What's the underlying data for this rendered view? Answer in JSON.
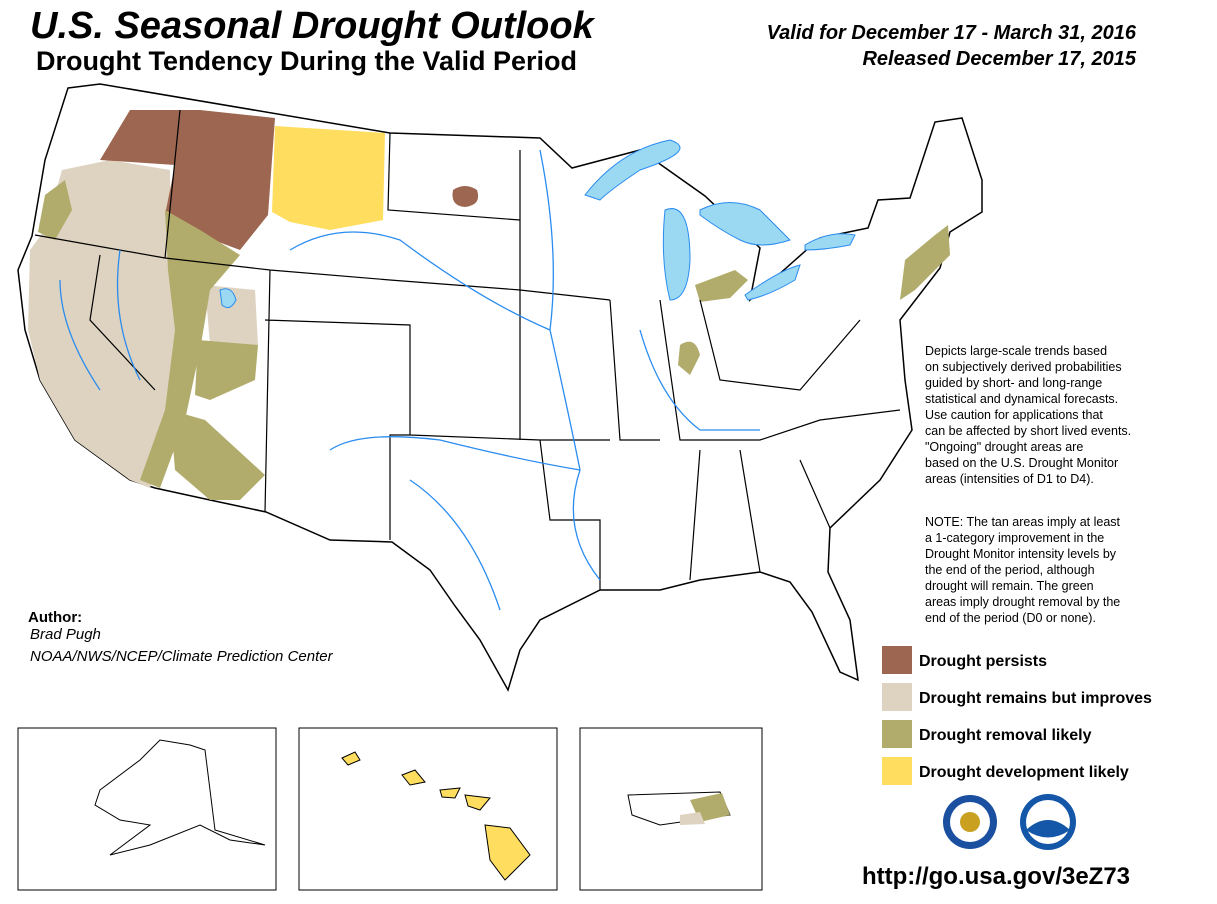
{
  "header": {
    "title": "U.S. Seasonal Drought Outlook",
    "subtitle": "Drought Tendency During the Valid Period",
    "valid": "Valid for December 17 - March 31, 2016",
    "released": "Released December 17, 2015"
  },
  "description": [
    "Depicts large-scale trends based",
    "on subjectively derived probabilities",
    "guided by short- and long-range",
    "statistical and dynamical forecasts.",
    "Use caution for applications that",
    "can be affected by short lived events.",
    "\"Ongoing\" drought areas are",
    "based on the U.S. Drought Monitor",
    "areas (intensities of D1 to D4)."
  ],
  "note": [
    "NOTE: The tan areas imply at least",
    "a 1-category improvement in the",
    "Drought Monitor intensity levels by",
    "the end of the period, although",
    "drought will remain. The green",
    "areas imply drought removal by the",
    "end of the period (D0 or none)."
  ],
  "author": {
    "label": "Author:",
    "name": "Brad Pugh",
    "org": "NOAA/NWS/NCEP/Climate Prediction Center"
  },
  "legend": [
    {
      "label": "Drought persists",
      "color": "#9c6650"
    },
    {
      "label": "Drought remains but improves",
      "color": "#ddd3c0"
    },
    {
      "label": "Drought removal likely",
      "color": "#b2ac6c"
    },
    {
      "label": "Drought development likely",
      "color": "#ffdd5f"
    }
  ],
  "url": "http://go.usa.gov/3eZ73"
}
